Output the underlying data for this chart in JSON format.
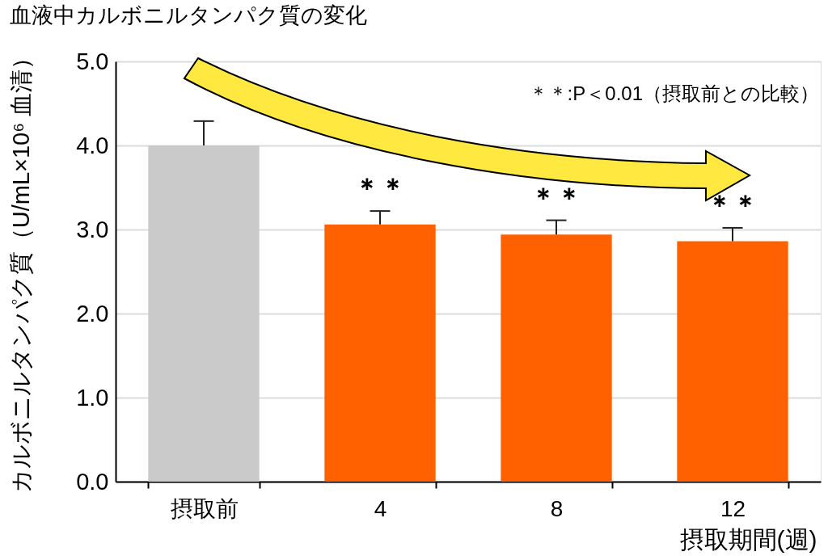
{
  "chart_data": {
    "type": "bar",
    "title": "血液中カルボニルタンパク質の変化",
    "xlabel": "摂取期間(週)",
    "ylabel": "カルボニルタンパク質（U/mL×10⁶ 血清）",
    "categories": [
      "摂取前",
      "4",
      "8",
      "12"
    ],
    "values": [
      4.0,
      3.06,
      2.94,
      2.86
    ],
    "colors": [
      "#cacaca",
      "#ff6000",
      "#ff6000",
      "#ff6000"
    ],
    "errors": [
      0.29,
      0.16,
      0.17,
      0.16
    ],
    "ylim": [
      0,
      5
    ],
    "yticks": [
      {
        "value": 0,
        "label": "0.0"
      },
      {
        "value": 1,
        "label": "1.0"
      },
      {
        "value": 2,
        "label": "2.0"
      },
      {
        "value": 3,
        "label": "3.0"
      },
      {
        "value": 4,
        "label": "4.0"
      },
      {
        "value": 5,
        "label": "5.0"
      }
    ],
    "grid": "y",
    "annotations": [
      "＊＊:P＜0.01（摂取前との比較）",
      "＊＊",
      "＊＊",
      "＊＊"
    ]
  }
}
